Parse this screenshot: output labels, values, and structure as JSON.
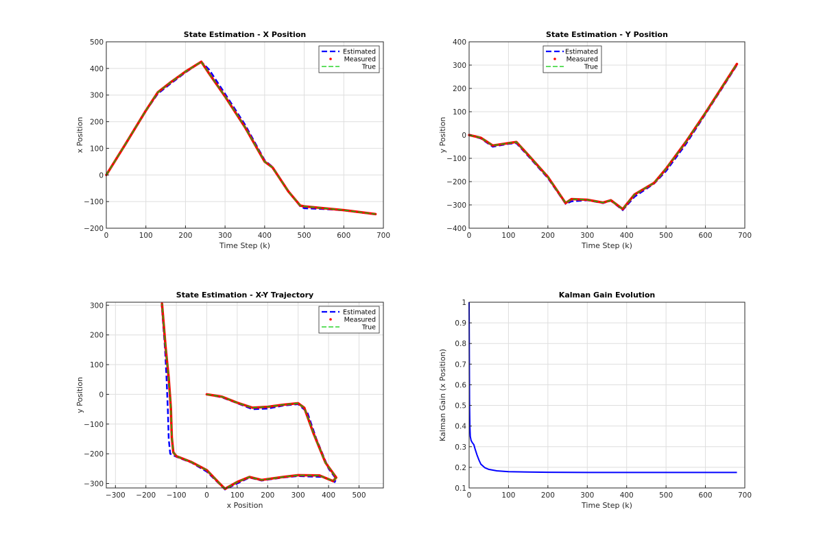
{
  "chart_data": [
    {
      "type": "line",
      "title": "State Estimation - X Position",
      "xlabel": "Time Step (k)",
      "ylabel": "x Position",
      "xlim": [
        0,
        700
      ],
      "ylim": [
        -200,
        500
      ],
      "xticks": [
        0,
        100,
        200,
        300,
        400,
        500,
        600,
        700
      ],
      "yticks": [
        -200,
        -100,
        0,
        100,
        200,
        300,
        400,
        500
      ],
      "grid": true,
      "legend_position": "top-right",
      "series": [
        {
          "name": "Estimated",
          "color": "#0000ff",
          "style": "dashed",
          "x": [
            0,
            50,
            100,
            130,
            160,
            200,
            240,
            260,
            300,
            350,
            400,
            420,
            460,
            490,
            500,
            550,
            600,
            680
          ],
          "y": [
            0,
            118,
            240,
            305,
            340,
            385,
            425,
            395,
            305,
            190,
            55,
            30,
            -60,
            -118,
            -125,
            -128,
            -133,
            -148
          ]
        },
        {
          "name": "Measured",
          "color": "#ff0000",
          "style": "markers",
          "x": [
            0,
            50,
            100,
            130,
            160,
            200,
            240,
            260,
            300,
            350,
            400,
            420,
            460,
            490,
            500,
            550,
            600,
            680
          ],
          "y": [
            0,
            120,
            242,
            310,
            345,
            388,
            425,
            380,
            295,
            180,
            50,
            28,
            -62,
            -115,
            -118,
            -125,
            -132,
            -147
          ]
        },
        {
          "name": "True",
          "color": "#00cc00",
          "style": "dashed-thin",
          "x": [
            0,
            50,
            100,
            130,
            160,
            200,
            240,
            260,
            300,
            350,
            400,
            420,
            460,
            490,
            500,
            550,
            600,
            680
          ],
          "y": [
            0,
            120,
            242,
            310,
            345,
            388,
            425,
            380,
            295,
            180,
            50,
            28,
            -62,
            -115,
            -118,
            -125,
            -132,
            -147
          ]
        }
      ]
    },
    {
      "type": "line",
      "title": "State Estimation - Y Position",
      "xlabel": "Time Step (k)",
      "ylabel": "y Position",
      "xlim": [
        0,
        700
      ],
      "ylim": [
        -400,
        400
      ],
      "xticks": [
        0,
        100,
        200,
        300,
        400,
        500,
        600,
        700
      ],
      "yticks": [
        -400,
        -300,
        -200,
        -100,
        0,
        100,
        200,
        300,
        400
      ],
      "grid": true,
      "legend_position": "top-left",
      "series": [
        {
          "name": "Estimated",
          "color": "#0000ff",
          "style": "dashed",
          "x": [
            0,
            30,
            60,
            100,
            120,
            150,
            200,
            245,
            260,
            300,
            340,
            360,
            390,
            420,
            470,
            500,
            550,
            600,
            680
          ],
          "y": [
            0,
            -15,
            -50,
            -38,
            -35,
            -90,
            -185,
            -295,
            -285,
            -280,
            -292,
            -282,
            -322,
            -265,
            -208,
            -155,
            -40,
            90,
            300
          ]
        },
        {
          "name": "Measured",
          "color": "#ff0000",
          "style": "markers",
          "x": [
            0,
            30,
            60,
            100,
            120,
            150,
            200,
            245,
            260,
            300,
            340,
            360,
            390,
            420,
            470,
            500,
            550,
            600,
            680
          ],
          "y": [
            0,
            -12,
            -45,
            -35,
            -30,
            -85,
            -180,
            -292,
            -275,
            -278,
            -290,
            -280,
            -318,
            -255,
            -205,
            -145,
            -30,
            95,
            305
          ]
        },
        {
          "name": "True",
          "color": "#00cc00",
          "style": "dashed-thin",
          "x": [
            0,
            30,
            60,
            100,
            120,
            150,
            200,
            245,
            260,
            300,
            340,
            360,
            390,
            420,
            470,
            500,
            550,
            600,
            680
          ],
          "y": [
            0,
            -12,
            -45,
            -35,
            -30,
            -85,
            -180,
            -292,
            -275,
            -278,
            -290,
            -280,
            -318,
            -255,
            -205,
            -145,
            -30,
            95,
            305
          ]
        }
      ]
    },
    {
      "type": "line",
      "title": "State Estimation - X-Y Trajectory",
      "xlabel": "x Position",
      "ylabel": "y Position",
      "xlim": [
        -330,
        580
      ],
      "ylim": [
        -315,
        310
      ],
      "xticks": [
        -300,
        -200,
        -100,
        0,
        100,
        200,
        300,
        400,
        500
      ],
      "yticks": [
        -300,
        -200,
        -100,
        0,
        100,
        200,
        300
      ],
      "grid": true,
      "legend_position": "top-right",
      "series": [
        {
          "name": "Estimated",
          "color": "#0000ff",
          "style": "dashed",
          "x": [
            0,
            50,
            100,
            150,
            200,
            250,
            300,
            330,
            360,
            400,
            425,
            420,
            380,
            300,
            250,
            180,
            140,
            100,
            60,
            40,
            0,
            -50,
            -100,
            -120,
            -125,
            -128,
            -132,
            -137,
            -148
          ],
          "y": [
            0,
            -10,
            -30,
            -50,
            -48,
            -38,
            -33,
            -60,
            -150,
            -250,
            -285,
            -295,
            -278,
            -275,
            -280,
            -290,
            -280,
            -300,
            -320,
            -300,
            -260,
            -230,
            -210,
            -200,
            -150,
            -50,
            50,
            150,
            300
          ]
        },
        {
          "name": "Measured",
          "color": "#ff0000",
          "style": "markers",
          "x": [
            0,
            50,
            100,
            150,
            200,
            250,
            300,
            320,
            350,
            390,
            425,
            415,
            370,
            300,
            250,
            180,
            140,
            100,
            60,
            40,
            0,
            -50,
            -100,
            -110,
            -115,
            -118,
            -125,
            -135,
            -147
          ],
          "y": [
            0,
            -8,
            -28,
            -45,
            -42,
            -35,
            -30,
            -45,
            -130,
            -230,
            -280,
            -292,
            -273,
            -272,
            -278,
            -288,
            -278,
            -295,
            -318,
            -298,
            -255,
            -228,
            -208,
            -195,
            -145,
            -45,
            55,
            155,
            305
          ]
        },
        {
          "name": "True",
          "color": "#00cc00",
          "style": "dashed-thin",
          "x": [
            0,
            50,
            100,
            150,
            200,
            250,
            300,
            320,
            350,
            390,
            425,
            415,
            370,
            300,
            250,
            180,
            140,
            100,
            60,
            40,
            0,
            -50,
            -100,
            -110,
            -115,
            -118,
            -125,
            -135,
            -147
          ],
          "y": [
            0,
            -8,
            -28,
            -45,
            -42,
            -35,
            -30,
            -45,
            -130,
            -230,
            -280,
            -292,
            -273,
            -272,
            -278,
            -288,
            -278,
            -295,
            -318,
            -298,
            -255,
            -228,
            -208,
            -195,
            -145,
            -45,
            55,
            155,
            305
          ]
        }
      ]
    },
    {
      "type": "line",
      "title": "Kalman Gain Evolution",
      "xlabel": "Time Step (k)",
      "ylabel": "Kalman Gain (x Position)",
      "xlim": [
        0,
        700
      ],
      "ylim": [
        0.1,
        1
      ],
      "xticks": [
        0,
        100,
        200,
        300,
        400,
        500,
        600,
        700
      ],
      "yticks": [
        0.1,
        0.2,
        0.3,
        0.4,
        0.5,
        0.6,
        0.7,
        0.8,
        0.9,
        1
      ],
      "grid": true,
      "series": [
        {
          "color": "#0000ff",
          "style": "solid",
          "x": [
            0,
            1,
            2,
            3,
            5,
            8,
            12,
            15,
            20,
            25,
            30,
            40,
            50,
            70,
            100,
            150,
            200,
            300,
            400,
            500,
            600,
            680
          ],
          "y": [
            1,
            0.52,
            0.4,
            0.35,
            0.33,
            0.32,
            0.31,
            0.29,
            0.26,
            0.235,
            0.215,
            0.198,
            0.19,
            0.183,
            0.179,
            0.177,
            0.176,
            0.175,
            0.175,
            0.175,
            0.175,
            0.175
          ]
        }
      ]
    }
  ]
}
